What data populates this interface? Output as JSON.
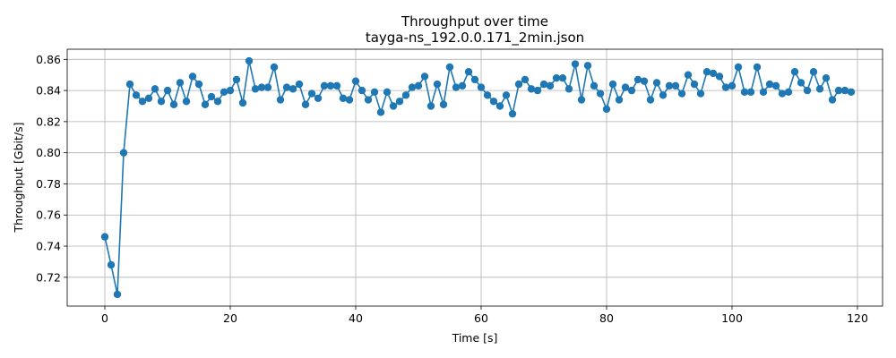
{
  "chart_data": {
    "type": "line",
    "title": "Throughput over time",
    "subtitle": "tayga-ns_192.0.0.171_2min.json",
    "xlabel": "Time [s]",
    "ylabel": "Throughput [Gbit/s]",
    "xlim": [
      -6,
      124
    ],
    "ylim": [
      0.7015,
      0.8665
    ],
    "xticks": [
      0,
      20,
      40,
      60,
      80,
      100,
      120
    ],
    "yticks": [
      0.72,
      0.74,
      0.76,
      0.78,
      0.8,
      0.82,
      0.84,
      0.86
    ],
    "xtick_labels": [
      "0",
      "20",
      "40",
      "60",
      "80",
      "100",
      "120"
    ],
    "ytick_labels": [
      "0.72",
      "0.74",
      "0.76",
      "0.78",
      "0.80",
      "0.82",
      "0.84",
      "0.86"
    ],
    "grid": true,
    "series": [
      {
        "color": "#1f77b4",
        "marker": "circle",
        "x": [
          0,
          1,
          2,
          3,
          4,
          5,
          6,
          7,
          8,
          9,
          10,
          11,
          12,
          13,
          14,
          15,
          16,
          17,
          18,
          19,
          20,
          21,
          22,
          23,
          24,
          25,
          26,
          27,
          28,
          29,
          30,
          31,
          32,
          33,
          34,
          35,
          36,
          37,
          38,
          39,
          40,
          41,
          42,
          43,
          44,
          45,
          46,
          47,
          48,
          49,
          50,
          51,
          52,
          53,
          54,
          55,
          56,
          57,
          58,
          59,
          60,
          61,
          62,
          63,
          64,
          65,
          66,
          67,
          68,
          69,
          70,
          71,
          72,
          73,
          74,
          75,
          76,
          77,
          78,
          79,
          80,
          81,
          82,
          83,
          84,
          85,
          86,
          87,
          88,
          89,
          90,
          91,
          92,
          93,
          94,
          95,
          96,
          97,
          98,
          99,
          100,
          101,
          102,
          103,
          104,
          105,
          106,
          107,
          108,
          109,
          110,
          111,
          112,
          113,
          114,
          115,
          116,
          117,
          118,
          119
        ],
        "y": [
          0.746,
          0.728,
          0.709,
          0.8,
          0.844,
          0.837,
          0.833,
          0.835,
          0.841,
          0.833,
          0.84,
          0.831,
          0.845,
          0.833,
          0.849,
          0.844,
          0.831,
          0.836,
          0.833,
          0.839,
          0.84,
          0.847,
          0.832,
          0.859,
          0.841,
          0.842,
          0.842,
          0.855,
          0.834,
          0.842,
          0.841,
          0.844,
          0.831,
          0.838,
          0.835,
          0.843,
          0.843,
          0.843,
          0.835,
          0.834,
          0.846,
          0.84,
          0.834,
          0.839,
          0.826,
          0.839,
          0.83,
          0.833,
          0.837,
          0.842,
          0.843,
          0.849,
          0.83,
          0.844,
          0.831,
          0.855,
          0.842,
          0.843,
          0.852,
          0.847,
          0.842,
          0.837,
          0.833,
          0.83,
          0.837,
          0.825,
          0.844,
          0.847,
          0.841,
          0.84,
          0.844,
          0.843,
          0.848,
          0.848,
          0.841,
          0.857,
          0.834,
          0.856,
          0.843,
          0.838,
          0.828,
          0.844,
          0.834,
          0.842,
          0.84,
          0.847,
          0.846,
          0.834,
          0.845,
          0.837,
          0.843,
          0.843,
          0.838,
          0.85,
          0.844,
          0.838,
          0.852,
          0.851,
          0.849,
          0.842,
          0.843,
          0.855,
          0.839,
          0.839,
          0.855,
          0.839,
          0.844,
          0.843,
          0.838,
          0.839,
          0.852,
          0.845,
          0.84,
          0.852,
          0.841,
          0.848,
          0.834,
          0.84,
          0.84,
          0.839
        ]
      }
    ]
  }
}
